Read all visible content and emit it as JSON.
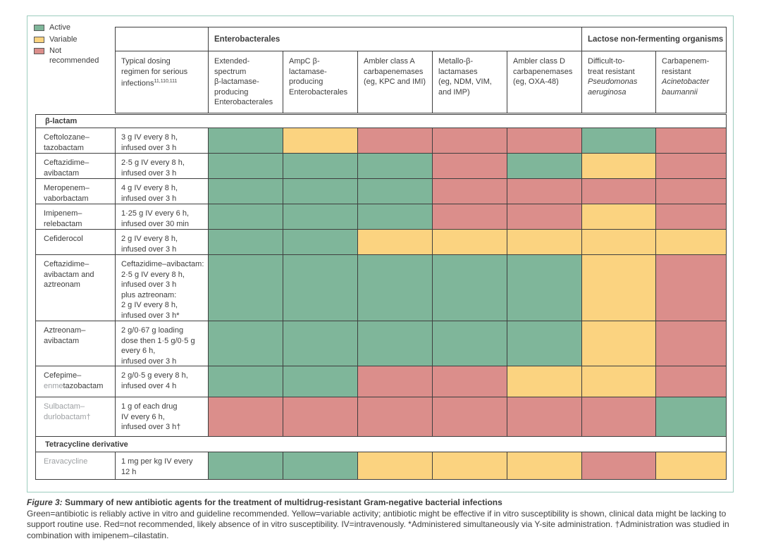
{
  "colors": {
    "active": "#7fb69a",
    "variable": "#fbd380",
    "not_recommended": "#db8e8b",
    "frame": "#9ccdbe",
    "grid": "#3f3f3f",
    "text": "#3d3d3d",
    "muted": "#9da0a3"
  },
  "legend": {
    "items": [
      {
        "label": "Active",
        "key": "active"
      },
      {
        "label": "Variable",
        "key": "variable"
      },
      {
        "label": "Not recommended",
        "key": "not_recommended"
      }
    ]
  },
  "header": {
    "groups": [
      {
        "label": "Enterobacterales",
        "span_start": 0,
        "span_end": 5
      },
      {
        "label": "Lactose non-fermenting organisms",
        "span_start": 5,
        "span_end": 7
      }
    ],
    "dosing": {
      "lines": [
        "Typical dosing",
        "regimen for serious",
        "infections"
      ],
      "superscript": "11,110,111"
    },
    "columns": [
      {
        "lines": [
          "Extended-",
          "spectrum",
          "β-lactamase-",
          "producing",
          "Enterobacterales"
        ],
        "italic_lines": []
      },
      {
        "lines": [
          "AmpC β-",
          "lactamase-",
          "producing",
          "Enterobacterales"
        ],
        "italic_lines": []
      },
      {
        "lines": [
          "Ambler class A",
          "carbapenemases",
          "(eg, KPC and IMI)"
        ],
        "italic_lines": []
      },
      {
        "lines": [
          "Metallo-β-",
          "lactamases",
          "(eg, NDM, VIM,",
          "and IMP)"
        ],
        "italic_lines": []
      },
      {
        "lines": [
          "Ambler class D",
          "carbapenemases",
          "(eg, OXA-48)"
        ],
        "italic_lines": []
      },
      {
        "lines": [
          "Difficult-to-",
          "treat resistant",
          "Pseudomonas",
          "aeruginosa"
        ],
        "italic_lines": [
          2,
          3
        ]
      },
      {
        "lines": [
          "Carbapenem-",
          "resistant",
          "Acinetobacter",
          "baumannii"
        ],
        "italic_lines": [
          2,
          3
        ]
      }
    ]
  },
  "table": {
    "rows": [
      {
        "type": "section",
        "label": "β-lactam"
      },
      {
        "type": "drug",
        "muted": false,
        "name": [
          {
            "segs": [
              {
                "t": "Ceftolozane–"
              }
            ]
          },
          {
            "segs": [
              {
                "t": "tazobactam"
              }
            ]
          }
        ],
        "dose": [
          "3 g IV every 8 h,",
          "infused over 3 h"
        ],
        "cells": [
          "active",
          "variable",
          "not_recommended",
          "not_recommended",
          "not_recommended",
          "active",
          "not_recommended"
        ]
      },
      {
        "type": "drug",
        "muted": false,
        "name": [
          {
            "segs": [
              {
                "t": "Ceftazidime–"
              }
            ]
          },
          {
            "segs": [
              {
                "t": "avibactam"
              }
            ]
          }
        ],
        "dose": [
          "2·5 g IV every 8 h,",
          "infused over 3 h"
        ],
        "cells": [
          "active",
          "active",
          "active",
          "not_recommended",
          "active",
          "variable",
          "not_recommended"
        ]
      },
      {
        "type": "drug",
        "muted": false,
        "name": [
          {
            "segs": [
              {
                "t": "Meropenem–"
              }
            ]
          },
          {
            "segs": [
              {
                "t": "vaborbactam"
              }
            ]
          }
        ],
        "dose": [
          "4 g IV every 8 h,",
          "infused over 3 h"
        ],
        "cells": [
          "active",
          "active",
          "active",
          "not_recommended",
          "not_recommended",
          "not_recommended",
          "not_recommended"
        ]
      },
      {
        "type": "drug",
        "muted": false,
        "name": [
          {
            "segs": [
              {
                "t": "Imipenem–"
              }
            ]
          },
          {
            "segs": [
              {
                "t": "relebactam"
              }
            ]
          }
        ],
        "dose": [
          "1·25 g IV every 6 h,",
          "infused over 30 min"
        ],
        "cells": [
          "active",
          "active",
          "active",
          "not_recommended",
          "not_recommended",
          "variable",
          "not_recommended"
        ]
      },
      {
        "type": "drug",
        "muted": false,
        "name": [
          {
            "segs": [
              {
                "t": "Cefiderocol"
              }
            ]
          }
        ],
        "dose": [
          "2 g IV every 8 h,",
          "infused over 3 h"
        ],
        "cells": [
          "active",
          "active",
          "variable",
          "variable",
          "variable",
          "variable",
          "variable"
        ]
      },
      {
        "type": "drug",
        "muted": false,
        "name": [
          {
            "segs": [
              {
                "t": "Ceftazidime–"
              }
            ]
          },
          {
            "segs": [
              {
                "t": "avibactam and"
              }
            ]
          },
          {
            "segs": [
              {
                "t": "aztreonam"
              }
            ]
          }
        ],
        "dose": [
          "Ceftazidime–avibactam:",
          "2·5 g IV every 8 h,",
          "infused over 3 h",
          "plus aztreonam:",
          "2 g IV every 8 h,",
          "infused over 3 h*"
        ],
        "cells": [
          "active",
          "active",
          "active",
          "active",
          "active",
          "variable",
          "not_recommended"
        ]
      },
      {
        "type": "drug",
        "muted": false,
        "name": [
          {
            "segs": [
              {
                "t": "Aztreonam–"
              }
            ]
          },
          {
            "segs": [
              {
                "t": "avibactam"
              }
            ]
          }
        ],
        "dose": [
          "2 g/0·67 g loading",
          "dose then 1·5 g/0·5 g",
          "every 6 h,",
          "infused over 3 h"
        ],
        "cells": [
          "active",
          "active",
          "active",
          "active",
          "active",
          "variable",
          "not_recommended"
        ]
      },
      {
        "type": "drug",
        "muted": false,
        "name": [
          {
            "segs": [
              {
                "t": "Cefepime–"
              }
            ]
          },
          {
            "segs": [
              {
                "t": "enme",
                "muted": true
              },
              {
                "t": "tazobactam"
              }
            ]
          }
        ],
        "dose": [
          "2 g/0·5 g every 8 h,",
          "infused over 4 h"
        ],
        "cells": [
          "active",
          "active",
          "not_recommended",
          "not_recommended",
          "variable",
          "variable",
          "not_recommended"
        ]
      },
      {
        "type": "drug",
        "muted": true,
        "name": [
          {
            "segs": [
              {
                "t": "Sulbactam–"
              }
            ]
          },
          {
            "segs": [
              {
                "t": "durlobactam†"
              }
            ]
          }
        ],
        "dose": [
          "1 g of each drug",
          "IV every 6 h,",
          "infused over 3 h†"
        ],
        "cells": [
          "not_recommended",
          "not_recommended",
          "not_recommended",
          "not_recommended",
          "not_recommended",
          "not_recommended",
          "active"
        ]
      },
      {
        "type": "section",
        "label": "Tetracycline derivative"
      },
      {
        "type": "drug",
        "muted": true,
        "name": [
          {
            "segs": [
              {
                "t": "Eravacycline"
              }
            ]
          }
        ],
        "dose": [
          "1 mg per kg IV every",
          "12 h"
        ],
        "cells": [
          "active",
          "active",
          "variable",
          "variable",
          "variable",
          "not_recommended",
          "variable"
        ]
      }
    ]
  },
  "caption": {
    "figure_label": "Figure 3:",
    "title": "Summary of new antibiotic agents for the treatment of multidrug-resistant Gram-negative bacterial infections",
    "body": "Green=antibiotic is reliably active in vitro and guideline recommended. Yellow=variable activity; antibiotic might be effective if in vitro susceptibility is shown, clinical data might be lacking to support routine use. Red=not recommended, likely absence of in vitro susceptibility. IV=intravenously. *Administered simultaneously via Y-site administration. †Administration was studied in combination with imipenem–cilastatin."
  }
}
